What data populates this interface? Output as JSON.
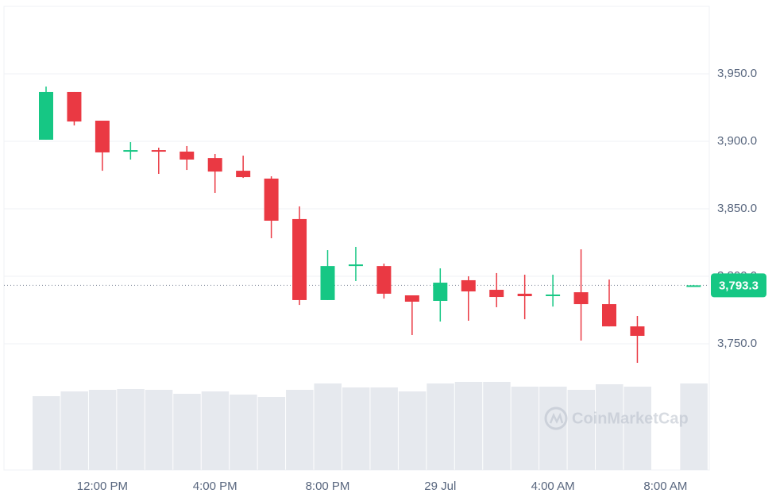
{
  "chart_data": {
    "type": "candlestick",
    "categories": [
      null,
      null,
      "12:00 PM",
      null,
      null,
      null,
      "4:00 PM",
      null,
      null,
      null,
      "8:00 PM",
      null,
      null,
      null,
      "29 Jul",
      null,
      null,
      null,
      "4:00 AM",
      null,
      null,
      null,
      "8:00 AM",
      null
    ],
    "open": [
      3901.2,
      3936.5,
      3915.3,
      3893.0,
      3893.5,
      3892.4,
      3887.6,
      3878.2,
      3872.4,
      3842.4,
      3782.4,
      3807.6,
      3807.6,
      3785.9,
      3781.8,
      3797.1,
      3790.0,
      3787.1,
      3785.9,
      3788.2,
      3779.4,
      3762.9,
      null,
      3792.6
    ],
    "high": [
      3940.6,
      3936.5,
      3915.3,
      3899.4,
      3895.3,
      3896.5,
      3890.6,
      3889.4,
      3874.1,
      3851.8,
      3819.4,
      3821.8,
      3809.4,
      3785.9,
      3805.9,
      3800.0,
      3802.4,
      3801.2,
      3801.2,
      3820.0,
      3797.6,
      3770.6,
      null,
      3793.6
    ],
    "low": [
      3901.2,
      3911.8,
      3878.2,
      3886.5,
      3875.9,
      3878.8,
      3861.8,
      3872.9,
      3828.2,
      3778.8,
      3782.4,
      3796.5,
      3783.5,
      3756.5,
      3766.5,
      3767.1,
      3777.1,
      3768.2,
      3777.6,
      3752.4,
      3762.9,
      3735.9,
      null,
      3792.4
    ],
    "close": [
      3936.5,
      3914.7,
      3891.8,
      3893.5,
      3892.4,
      3886.5,
      3877.6,
      3873.5,
      3841.2,
      3782.4,
      3807.6,
      3808.8,
      3787.1,
      3781.2,
      3795.3,
      3788.8,
      3784.7,
      3785.3,
      3786.5,
      3779.4,
      3762.9,
      3755.9,
      null,
      3793.3
    ],
    "volume": [
      93,
      99,
      101,
      102,
      101,
      96,
      99,
      95,
      92,
      101,
      109,
      104,
      104,
      99,
      109,
      111,
      111,
      105,
      105,
      101,
      108,
      105,
      null,
      109
    ],
    "up_color": "#16c784",
    "down_color": "#ea3943",
    "volume_color": "#e6e9ee",
    "ylim": [
      3656.5,
      4000
    ],
    "y2lim": [
      0,
      584
    ],
    "yticks": [
      {
        "value": 3750,
        "label": "3,750.0"
      },
      {
        "value": 3800,
        "label": "3,800.0"
      },
      {
        "value": 3850,
        "label": "3,850.0"
      },
      {
        "value": 3900,
        "label": "3,900.0"
      },
      {
        "value": 3950,
        "label": "3,950.0"
      }
    ],
    "current_price": {
      "value": 3793.3,
      "label": "3,793.3"
    },
    "watermark": "CoinMarketCap",
    "grid": true
  }
}
